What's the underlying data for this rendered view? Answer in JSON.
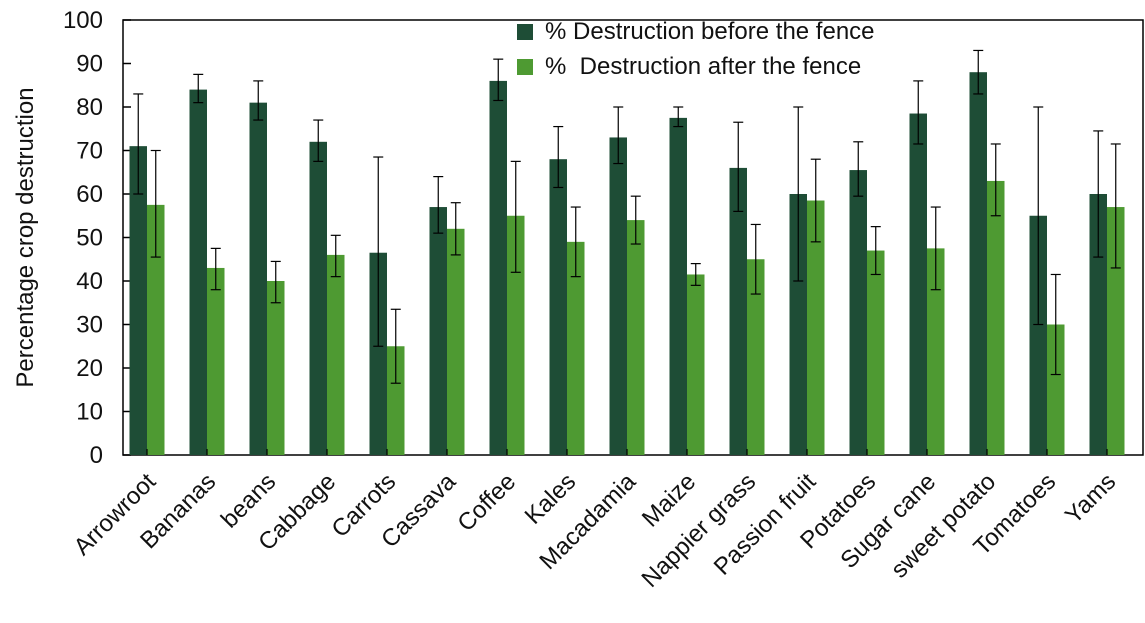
{
  "chart_data": {
    "type": "bar",
    "title": "",
    "xlabel": "",
    "ylabel": "Percentage crop destruction",
    "ylim": [
      0,
      100
    ],
    "yticks": [
      0,
      10,
      20,
      30,
      40,
      50,
      60,
      70,
      80,
      90,
      100
    ],
    "grid": false,
    "legend_position": "top-right",
    "categories": [
      "Arrowroot",
      "Bananas",
      "beans",
      "Cabbage",
      "Carrots",
      "Cassava",
      "Coffee",
      "Kales",
      "Macadamia",
      "Maize",
      "Nappier grass",
      "Passion fruit",
      "Potatoes",
      "Sugar cane",
      "sweet potato",
      "Tomatoes",
      "Yams"
    ],
    "series": [
      {
        "name": "% Destruction before the fence",
        "color": "#1e4d36",
        "values": [
          71,
          84,
          81,
          72,
          46.5,
          57,
          86,
          68,
          73,
          77.5,
          66,
          60,
          65.5,
          78.5,
          88,
          55,
          60
        ],
        "error_low": [
          60,
          81,
          77,
          67.5,
          25,
          51,
          81.5,
          61.5,
          67,
          75.5,
          56,
          40,
          59.5,
          71.5,
          83,
          30,
          45.5
        ],
        "error_high": [
          83,
          87.5,
          86,
          77,
          68.5,
          64,
          91,
          75.5,
          80,
          80,
          76.5,
          80,
          72,
          86,
          93,
          80,
          74.5
        ]
      },
      {
        "name": "%  Destruction after the fence",
        "color": "#4e9a32",
        "values": [
          57.5,
          43,
          40,
          46,
          25,
          52,
          55,
          49,
          54,
          41.5,
          45,
          58.5,
          47,
          47.5,
          63,
          30,
          57
        ],
        "error_low": [
          45.5,
          38,
          35,
          41,
          16.5,
          46,
          42,
          41,
          48.5,
          39,
          37,
          49,
          41.5,
          38,
          55,
          18.5,
          43
        ],
        "error_high": [
          70,
          47.5,
          44.5,
          50.5,
          33.5,
          58,
          67.5,
          57,
          59.5,
          44,
          53,
          68,
          52.5,
          57,
          71.5,
          41.5,
          71.5
        ]
      }
    ]
  }
}
